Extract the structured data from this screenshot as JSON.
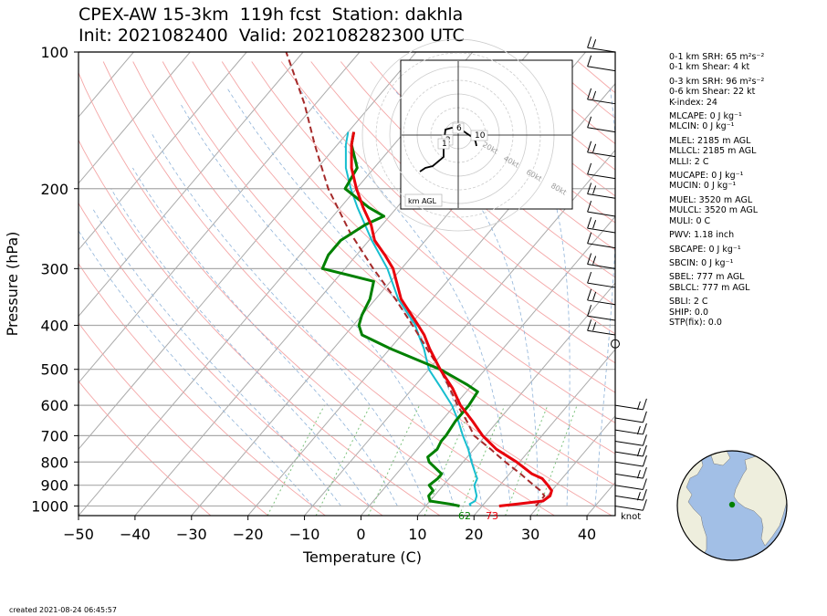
{
  "header": {
    "title_line1": "CPEX-AW 15-3km  119h fcst  Station: dakhla",
    "title_line2": "Init: 2021082400  Valid: 202108282300 UTC"
  },
  "footer": {
    "created": "created 2021-08-24 06:45:57"
  },
  "colors": {
    "temperature": "#e8000b",
    "dewpoint": "#008000",
    "wetbulb": "#17becf",
    "parcel": "#a52a2a",
    "dry_adiabat": "#f4a6a6",
    "isotherm": "#aaaaaa",
    "mixing_ratio": "#7cc27c",
    "globe_ocean": "#a2bfe6",
    "globe_land": "#eeeedd",
    "station_marker": "#008000"
  },
  "indices": [
    "0-1 km SRH: 65 m²s⁻²",
    "0-1 km Shear: 4 kt",
    "0-3 km SRH: 96 m²s⁻²",
    "0-6 km Shear: 22 kt",
    "K-index: 24",
    "MLCAPE: 0 J kg⁻¹",
    "MLCIN: 0 J kg⁻¹",
    "MLEL: 2185 m AGL",
    "MLLCL: 2185 m AGL",
    "MLLI: 2 C",
    "MUCAPE: 0 J kg⁻¹",
    "MUCIN: 0 J kg⁻¹",
    "MUEL: 3520 m AGL",
    "MULCL: 3520 m AGL",
    "MULI: 0 C",
    "PWV: 1.18 inch",
    "SBCAPE: 0 J kg⁻¹",
    "SBCIN: 0 J kg⁻¹",
    "SBEL: 777 m AGL",
    "SBLCL: 777 m AGL",
    "SBLI: 2 C",
    "SHIP: 0.0",
    "STP(fix): 0.0"
  ],
  "chart_data": [
    {
      "type": "line",
      "chart": "skew-t log-p sounding",
      "xlabel": "Temperature (C)",
      "ylabel": "Pressure (hPa)",
      "xlim": [
        -50,
        45
      ],
      "ylim": [
        1050,
        100
      ],
      "y_scale": "log",
      "x_ticks": [
        "−50",
        "−40",
        "−30",
        "−20",
        "−10",
        "0",
        "10",
        "20",
        "30",
        "40"
      ],
      "y_ticks": [
        "100",
        "200",
        "300",
        "400",
        "500",
        "600",
        "700",
        "800",
        "900",
        "1000"
      ],
      "wind_barb_units": "knot",
      "surface_labels": {
        "dewpoint": "62",
        "temperature": "73"
      },
      "series": [
        {
          "key": "temperature",
          "points": [
            [
              1000,
              23
            ],
            [
              990,
              26
            ],
            [
              975,
              30
            ],
            [
              950,
              30.5
            ],
            [
              925,
              30
            ],
            [
              900,
              28.5
            ],
            [
              870,
              26.5
            ],
            [
              850,
              24
            ],
            [
              800,
              19.5
            ],
            [
              750,
              14
            ],
            [
              700,
              9.5
            ],
            [
              650,
              5.5
            ],
            [
              600,
              1
            ],
            [
              550,
              -3
            ],
            [
              500,
              -8
            ],
            [
              450,
              -13
            ],
            [
              420,
              -16
            ],
            [
              400,
              -18.5
            ],
            [
              350,
              -25.5
            ],
            [
              300,
              -31.5
            ],
            [
              280,
              -35
            ],
            [
              260,
              -39
            ],
            [
              240,
              -42
            ],
            [
              220,
              -46
            ],
            [
              200,
              -50
            ],
            [
              180,
              -54
            ],
            [
              160,
              -57.5
            ],
            [
              150,
              -59
            ]
          ]
        },
        {
          "key": "wetbulb",
          "points": [
            [
              1000,
              18
            ],
            [
              990,
              17.5
            ],
            [
              975,
              18
            ],
            [
              950,
              17.5
            ],
            [
              925,
              16.5
            ],
            [
              900,
              15.5
            ],
            [
              870,
              15
            ],
            [
              850,
              14
            ],
            [
              800,
              11.5
            ],
            [
              750,
              9
            ],
            [
              700,
              6
            ],
            [
              650,
              3
            ],
            [
              600,
              -0.5
            ],
            [
              550,
              -5
            ],
            [
              500,
              -10
            ],
            [
              450,
              -14
            ],
            [
              420,
              -17
            ],
            [
              400,
              -19
            ],
            [
              350,
              -26
            ],
            [
              300,
              -32.5
            ],
            [
              260,
              -39.5
            ],
            [
              220,
              -47
            ],
            [
              200,
              -51
            ],
            [
              180,
              -55
            ],
            [
              160,
              -58.5
            ],
            [
              150,
              -60
            ]
          ]
        },
        {
          "key": "dewpoint",
          "points": [
            [
              1000,
              16
            ],
            [
              990,
              14
            ],
            [
              975,
              10
            ],
            [
              950,
              9
            ],
            [
              925,
              9
            ],
            [
              900,
              7.5
            ],
            [
              870,
              8
            ],
            [
              850,
              8
            ],
            [
              800,
              4
            ],
            [
              780,
              3
            ],
            [
              750,
              3.5
            ],
            [
              720,
              3
            ],
            [
              700,
              3
            ],
            [
              650,
              2.5
            ],
            [
              600,
              2.5
            ],
            [
              560,
              2
            ],
            [
              540,
              -1
            ],
            [
              500,
              -8
            ],
            [
              450,
              -20
            ],
            [
              420,
              -27
            ],
            [
              400,
              -29
            ],
            [
              380,
              -30
            ],
            [
              350,
              -31
            ],
            [
              320,
              -33
            ],
            [
              300,
              -44
            ],
            [
              280,
              -45
            ],
            [
              260,
              -45
            ],
            [
              240,
              -43
            ],
            [
              230,
              -41
            ],
            [
              220,
              -45
            ],
            [
              200,
              -52
            ],
            [
              180,
              -53
            ],
            [
              160,
              -57.5
            ],
            [
              150,
              -59
            ]
          ]
        },
        {
          "key": "parcel",
          "points": [
            [
              1000,
              29.5
            ],
            [
              950,
              29.5
            ],
            [
              925,
              28
            ],
            [
              900,
              26
            ],
            [
              850,
              22
            ],
            [
              800,
              17.5
            ],
            [
              750,
              13
            ],
            [
              700,
              8
            ],
            [
              650,
              4.5
            ],
            [
              600,
              0.5
            ],
            [
              550,
              -3.5
            ],
            [
              500,
              -8
            ],
            [
              450,
              -13.5
            ],
            [
              400,
              -19.5
            ],
            [
              350,
              -26.5
            ],
            [
              300,
              -35
            ],
            [
              250,
              -44.5
            ],
            [
              200,
              -55
            ],
            [
              160,
              -64
            ],
            [
              130,
              -72
            ],
            [
              110,
              -79
            ],
            [
              100,
              -83
            ]
          ]
        }
      ]
    },
    {
      "type": "line",
      "chart": "hodograph inset",
      "ring_labels": [
        "20kt",
        "40kt",
        "60kt",
        "80kt"
      ],
      "height_labels": [
        "6",
        "2",
        "1",
        "10"
      ],
      "legend": "km AGL"
    }
  ]
}
